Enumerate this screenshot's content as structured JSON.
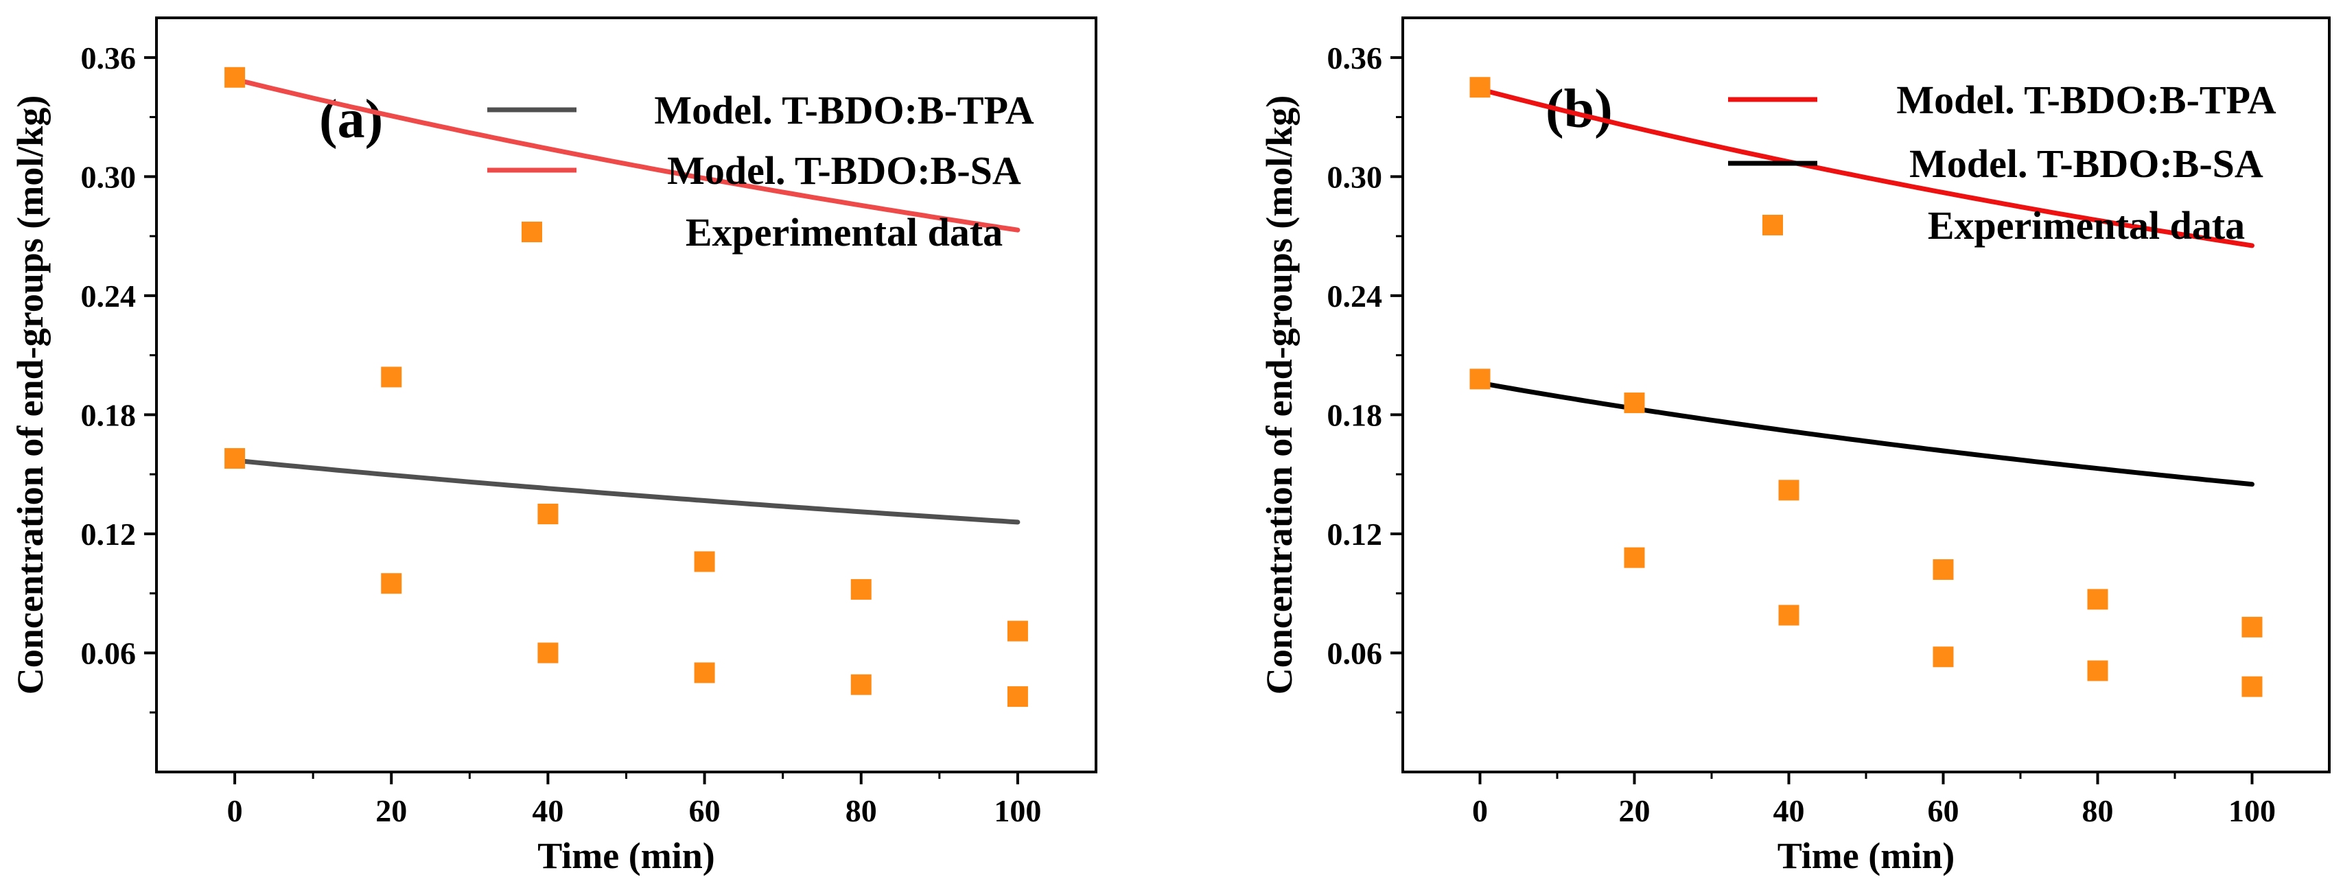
{
  "chart_data": [
    {
      "type": "line",
      "panel_label": "(a)",
      "xlabel": "Time (min)",
      "ylabel": "Concentration of end-groups (mol/kg)",
      "xlim": [
        -10,
        110
      ],
      "ylim": [
        0,
        0.38
      ],
      "x_ticks": [
        0,
        20,
        40,
        60,
        80,
        100
      ],
      "y_ticks": [
        0.06,
        0.12,
        0.18,
        0.24,
        0.3,
        0.36
      ],
      "y_tick_labels": [
        "0.06",
        "0.12",
        "0.18",
        "0.24",
        "0.30",
        "0.36"
      ],
      "legend": [
        {
          "label": "Model. T-BDO:B-TPA",
          "kind": "line",
          "color": "#505050"
        },
        {
          "label": "Model. T-BDO:B-SA",
          "kind": "line",
          "color": "#ee4a4a"
        },
        {
          "label": "Experimental data",
          "kind": "marker",
          "color": "#ff8a14"
        }
      ],
      "series": [
        {
          "name": "Model. T-BDO:B-TPA",
          "kind": "line",
          "color": "#505050",
          "model": {
            "c0": 0.157,
            "k": 0.00247
          }
        },
        {
          "name": "Model. T-BDO:B-SA",
          "kind": "line",
          "color": "#ee4a4a",
          "model": {
            "c0": 0.349,
            "k": 0.00278
          }
        },
        {
          "name": "Experimental data",
          "kind": "scatter",
          "color": "#ff8a14",
          "x": [
            0,
            20,
            40,
            60,
            80,
            100,
            0,
            20,
            40,
            60,
            80,
            100
          ],
          "y": [
            0.158,
            0.095,
            0.06,
            0.05,
            0.044,
            0.038,
            0.35,
            0.199,
            0.13,
            0.106,
            0.092,
            0.071
          ]
        }
      ]
    },
    {
      "type": "line",
      "panel_label": "(b)",
      "xlabel": "Time (min)",
      "ylabel": "Concentration of end-groups (mol/kg)",
      "xlim": [
        -10,
        110
      ],
      "ylim": [
        0,
        0.38
      ],
      "x_ticks": [
        0,
        20,
        40,
        60,
        80,
        100
      ],
      "y_ticks": [
        0.06,
        0.12,
        0.18,
        0.24,
        0.3,
        0.36
      ],
      "y_tick_labels": [
        "0.06",
        "0.12",
        "0.18",
        "0.24",
        "0.30",
        "0.36"
      ],
      "legend": [
        {
          "label": "Model. T-BDO:B-TPA",
          "kind": "line",
          "color": "#ee1111"
        },
        {
          "label": "Model. T-BDO:B-SA",
          "kind": "line",
          "color": "#000000"
        },
        {
          "label": "Experimental data",
          "kind": "marker",
          "color": "#ff8a14"
        }
      ],
      "series": [
        {
          "name": "Model. T-BDO:B-TPA",
          "kind": "line",
          "color": "#ee1111",
          "model": {
            "c0": 0.344,
            "k": 0.00297
          }
        },
        {
          "name": "Model. T-BDO:B-SA",
          "kind": "line",
          "color": "#000000",
          "model": {
            "c0": 0.196,
            "k": 0.00352
          }
        },
        {
          "name": "Experimental data",
          "kind": "scatter",
          "color": "#ff8a14",
          "x": [
            0,
            20,
            40,
            60,
            80,
            100,
            0,
            20,
            40,
            60,
            80,
            100
          ],
          "y": [
            0.345,
            0.186,
            0.142,
            0.102,
            0.087,
            0.073,
            0.198,
            0.108,
            0.079,
            0.058,
            0.051,
            0.043
          ]
        }
      ]
    }
  ]
}
